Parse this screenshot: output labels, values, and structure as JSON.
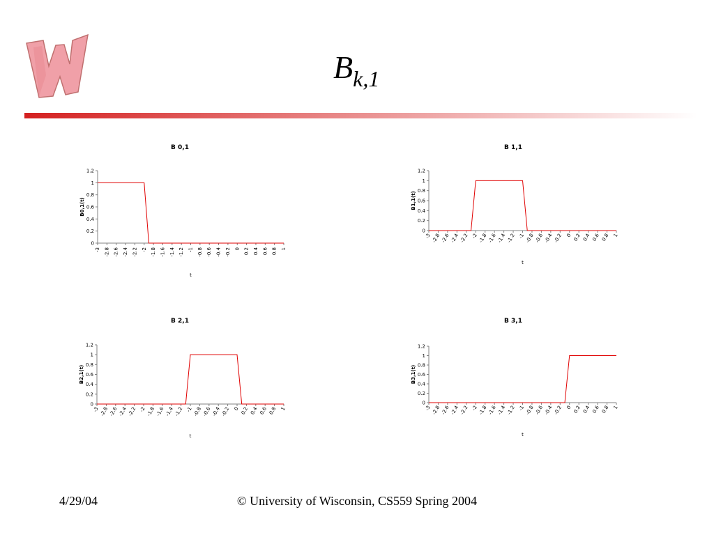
{
  "slide": {
    "title": "B",
    "title_subscript": "k,1",
    "date": "4/29/04",
    "footer": "© University of Wisconsin, CS559 Spring 2004"
  },
  "chart_data": [
    {
      "type": "line",
      "title": "B 0,1",
      "y_label": "B0,1(t)",
      "x_label": "t",
      "color": "#e00000",
      "x": [
        -3,
        -2.9,
        -2.8,
        -2.7,
        -2.6,
        -2.5,
        -2.4,
        -2.3,
        -2.2,
        -2.1,
        -2,
        -1.9,
        -1.8,
        -1.7,
        -1.6,
        -1.5,
        -1.4,
        -1.3,
        -1.2,
        -1.1,
        -1,
        -0.9,
        -0.8,
        -0.7,
        -0.6,
        -0.5,
        -0.4,
        -0.3,
        -0.2,
        -0.1,
        0,
        0.1,
        0.2,
        0.3,
        0.4,
        0.5,
        0.6,
        0.7,
        0.8,
        0.9,
        1
      ],
      "values": [
        1,
        1,
        1,
        1,
        1,
        1,
        1,
        1,
        1,
        1,
        1,
        0,
        0,
        0,
        0,
        0,
        0,
        0,
        0,
        0,
        0,
        0,
        0,
        0,
        0,
        0,
        0,
        0,
        0,
        0,
        0,
        0,
        0,
        0,
        0,
        0,
        0,
        0,
        0,
        0,
        0
      ],
      "xlim": [
        -3,
        1
      ],
      "xticks": [
        -3,
        -2.8,
        -2.6,
        -2.4,
        -2.2,
        -2,
        -1.8,
        -1.6,
        -1.4,
        -1.2,
        -1,
        -0.8,
        -0.6,
        -0.4,
        -0.2,
        0,
        0.2,
        0.4,
        0.6,
        0.8,
        1
      ],
      "ylim": [
        0,
        1.2
      ],
      "yticks": [
        0,
        0.2,
        0.4,
        0.6,
        0.8,
        1,
        1.2
      ]
    },
    {
      "type": "line",
      "title": "B 1,1",
      "y_label": "B1,1(t)",
      "x_label": "t",
      "color": "#e00000",
      "x": [
        -3,
        -2.9,
        -2.8,
        -2.7,
        -2.6,
        -2.5,
        -2.4,
        -2.3,
        -2.2,
        -2.1,
        -2,
        -1.9,
        -1.8,
        -1.7,
        -1.6,
        -1.5,
        -1.4,
        -1.3,
        -1.2,
        -1.1,
        -1,
        -0.9,
        -0.8,
        -0.7,
        -0.6,
        -0.5,
        -0.4,
        -0.3,
        -0.2,
        -0.1,
        0,
        0.1,
        0.2,
        0.3,
        0.4,
        0.5,
        0.6,
        0.7,
        0.8,
        0.9,
        1
      ],
      "values": [
        0,
        0,
        0,
        0,
        0,
        0,
        0,
        0,
        0,
        0,
        1,
        1,
        1,
        1,
        1,
        1,
        1,
        1,
        1,
        1,
        1,
        0,
        0,
        0,
        0,
        0,
        0,
        0,
        0,
        0,
        0,
        0,
        0,
        0,
        0,
        0,
        0,
        0,
        0,
        0,
        0
      ],
      "xlim": [
        -3,
        1
      ],
      "xticks": [
        -3,
        -2.8,
        -2.6,
        -2.4,
        -2.2,
        -2,
        -1.8,
        -1.6,
        -1.4,
        -1.2,
        -1,
        -0.8,
        -0.6,
        -0.4,
        -0.2,
        0,
        0.2,
        0.4,
        0.6,
        0.8,
        1
      ],
      "ylim": [
        0,
        1.2
      ],
      "yticks": [
        0,
        0.2,
        0.4,
        0.6,
        0.8,
        1,
        1.2
      ]
    },
    {
      "type": "line",
      "title": "B 2,1",
      "y_label": "B2,1(t)",
      "x_label": "t",
      "color": "#e00000",
      "x": [
        -3,
        -2.9,
        -2.8,
        -2.7,
        -2.6,
        -2.5,
        -2.4,
        -2.3,
        -2.2,
        -2.1,
        -2,
        -1.9,
        -1.8,
        -1.7,
        -1.6,
        -1.5,
        -1.4,
        -1.3,
        -1.2,
        -1.1,
        -1,
        -0.9,
        -0.8,
        -0.7,
        -0.6,
        -0.5,
        -0.4,
        -0.3,
        -0.2,
        -0.1,
        0,
        0.1,
        0.2,
        0.3,
        0.4,
        0.5,
        0.6,
        0.7,
        0.8,
        0.9,
        1
      ],
      "values": [
        0,
        0,
        0,
        0,
        0,
        0,
        0,
        0,
        0,
        0,
        0,
        0,
        0,
        0,
        0,
        0,
        0,
        0,
        0,
        0,
        1,
        1,
        1,
        1,
        1,
        1,
        1,
        1,
        1,
        1,
        1,
        0,
        0,
        0,
        0,
        0,
        0,
        0,
        0,
        0,
        0
      ],
      "xlim": [
        -3,
        1
      ],
      "xticks": [
        -3,
        -2.8,
        -2.6,
        -2.4,
        -2.2,
        -2,
        -1.8,
        -1.6,
        -1.4,
        -1.2,
        -1,
        -0.8,
        -0.6,
        -0.4,
        -0.2,
        0,
        0.2,
        0.4,
        0.6,
        0.8,
        1
      ],
      "ylim": [
        0,
        1.2
      ],
      "yticks": [
        0,
        0.2,
        0.4,
        0.6,
        0.8,
        1,
        1.2
      ]
    },
    {
      "type": "line",
      "title": "B 3,1",
      "y_label": "B3,1(t)",
      "x_label": "t",
      "color": "#e00000",
      "x": [
        -3,
        -2.9,
        -2.8,
        -2.7,
        -2.6,
        -2.5,
        -2.4,
        -2.3,
        -2.2,
        -2.1,
        -2,
        -1.9,
        -1.8,
        -1.7,
        -1.6,
        -1.5,
        -1.4,
        -1.3,
        -1.2,
        -1.1,
        -1,
        -0.9,
        -0.8,
        -0.7,
        -0.6,
        -0.5,
        -0.4,
        -0.3,
        -0.2,
        -0.1,
        0,
        0.1,
        0.2,
        0.3,
        0.4,
        0.5,
        0.6,
        0.7,
        0.8,
        0.9,
        1
      ],
      "values": [
        0,
        0,
        0,
        0,
        0,
        0,
        0,
        0,
        0,
        0,
        0,
        0,
        0,
        0,
        0,
        0,
        0,
        0,
        0,
        0,
        0,
        0,
        0,
        0,
        0,
        0,
        0,
        0,
        0,
        0,
        1,
        1,
        1,
        1,
        1,
        1,
        1,
        1,
        1,
        1,
        1
      ],
      "xlim": [
        -3,
        1
      ],
      "xticks": [
        -3,
        -2.8,
        -2.6,
        -2.4,
        -2.2,
        -2,
        -1.8,
        -1.6,
        -1.4,
        -1.2,
        -1,
        -0.8,
        -0.6,
        -0.4,
        -0.2,
        0,
        0.2,
        0.4,
        0.6,
        0.8,
        1
      ],
      "ylim": [
        0,
        1.2
      ],
      "yticks": [
        0,
        0.2,
        0.4,
        0.6,
        0.8,
        1,
        1.2
      ]
    }
  ]
}
